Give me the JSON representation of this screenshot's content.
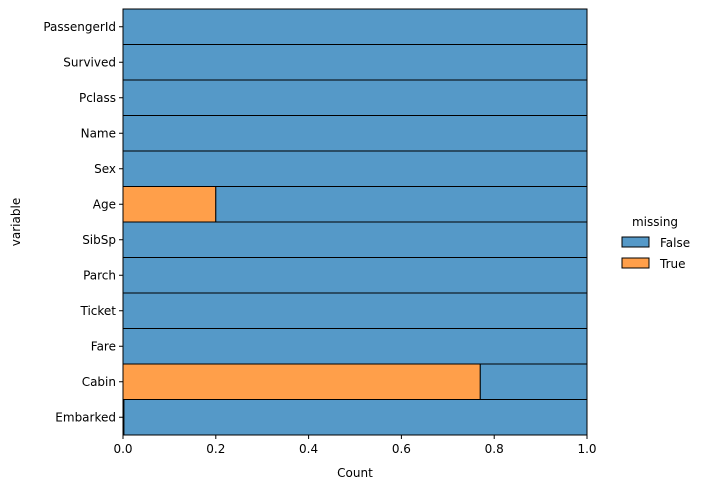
{
  "chart_data": {
    "type": "bar",
    "orientation": "horizontal",
    "stacked": "fill",
    "xlabel": "Count",
    "ylabel": "variable",
    "xlim": [
      0.0,
      1.0
    ],
    "xticks": [
      "0.0",
      "0.2",
      "0.4",
      "0.6",
      "0.8",
      "1.0"
    ],
    "grid": false,
    "legend": {
      "title": "missing",
      "placement": "right",
      "entries": [
        {
          "label": "False",
          "color": "#5599c8"
        },
        {
          "label": "True",
          "color": "#ff9f4a"
        }
      ]
    },
    "categories": [
      "PassengerId",
      "Survived",
      "Pclass",
      "Name",
      "Sex",
      "Age",
      "SibSp",
      "Parch",
      "Ticket",
      "Fare",
      "Cabin",
      "Embarked"
    ],
    "series": [
      {
        "name": "False",
        "color": "#5599c8",
        "values": [
          1.0,
          1.0,
          1.0,
          1.0,
          1.0,
          0.8,
          1.0,
          1.0,
          1.0,
          1.0,
          0.23,
          0.998
        ]
      },
      {
        "name": "True",
        "color": "#ff9f4a",
        "values": [
          0.0,
          0.0,
          0.0,
          0.0,
          0.0,
          0.2,
          0.0,
          0.0,
          0.0,
          0.0,
          0.77,
          0.002
        ]
      }
    ]
  }
}
